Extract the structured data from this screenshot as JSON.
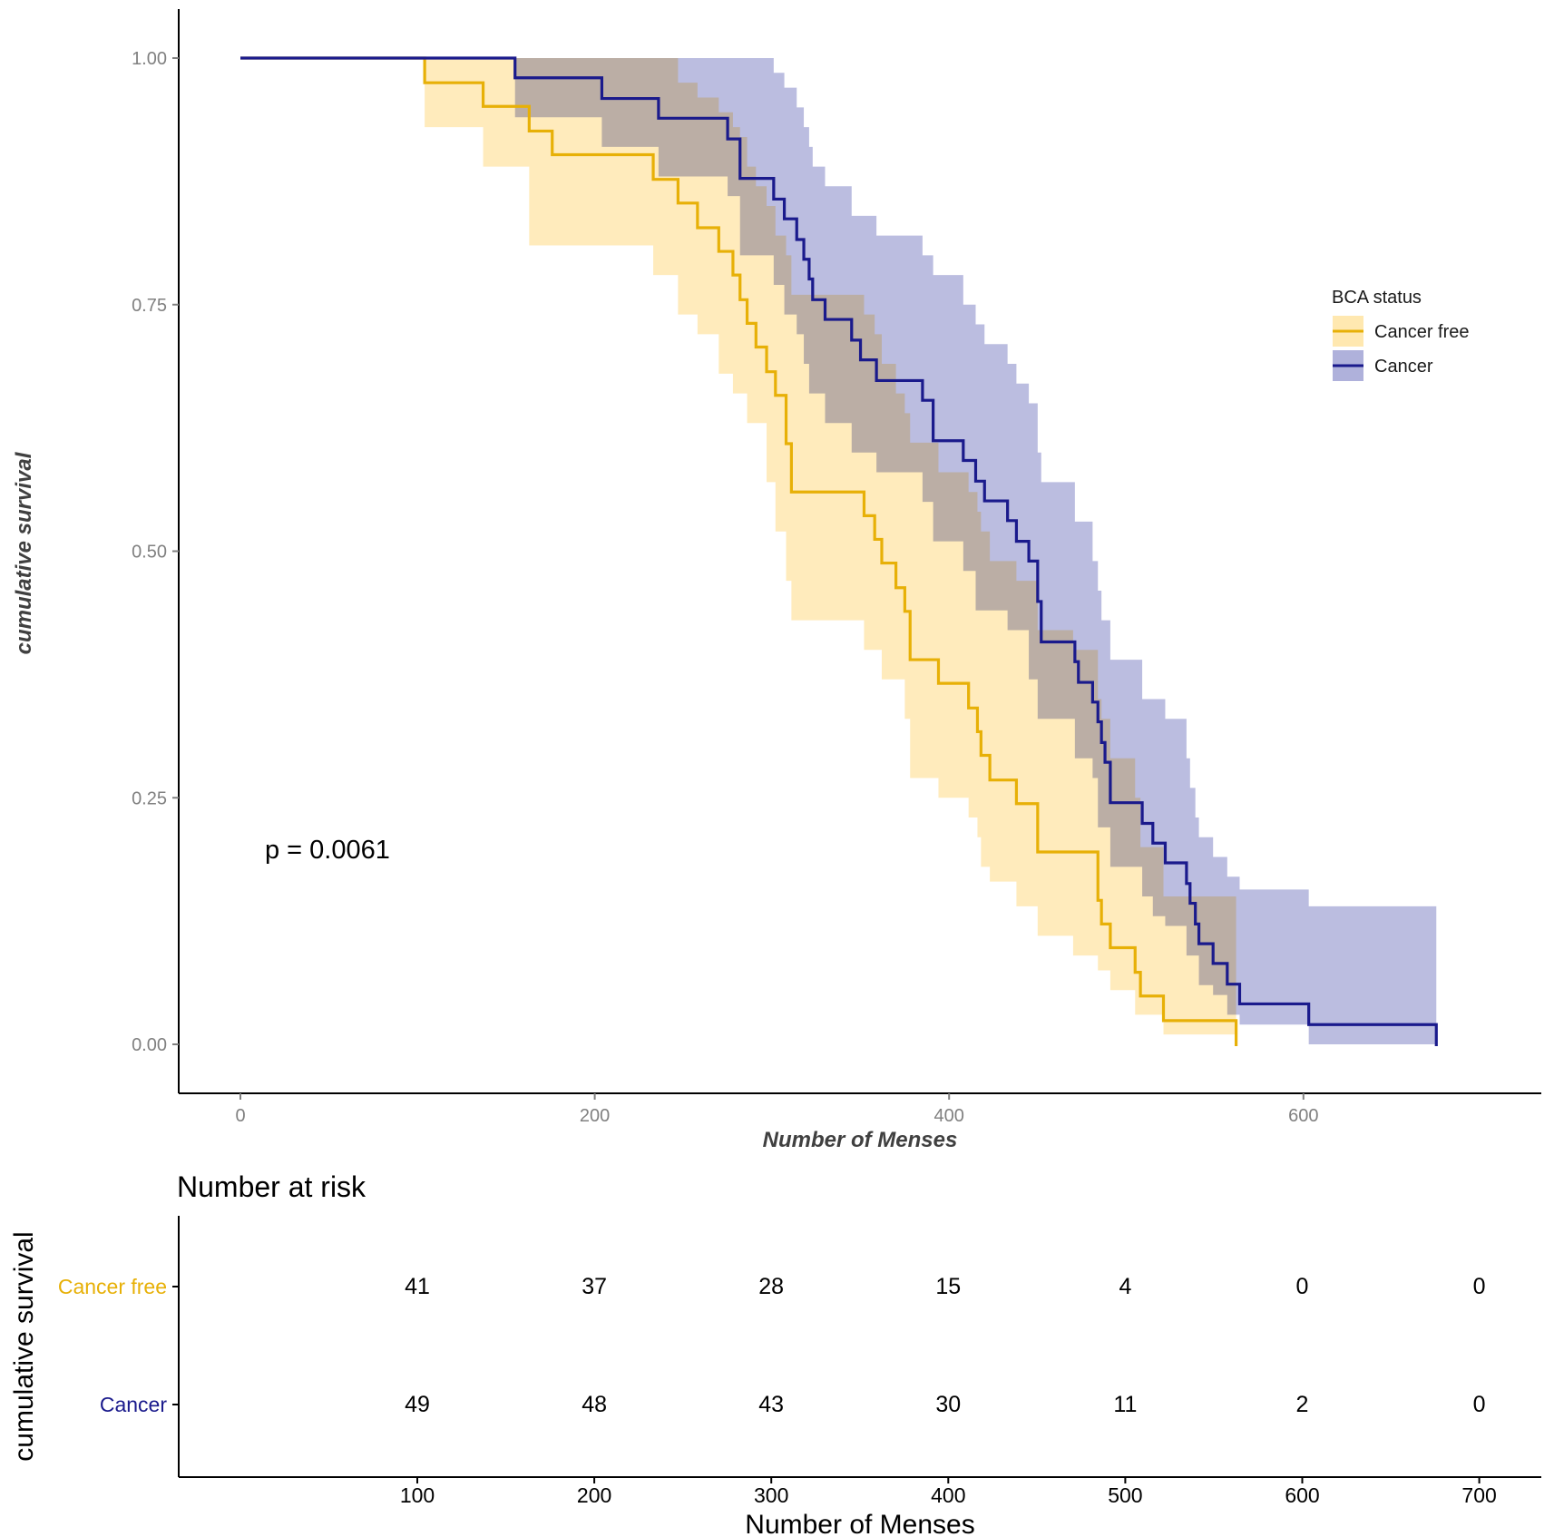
{
  "chart_data": {
    "type": "survival",
    "title": "",
    "xlabel": "Number of Menses",
    "ylabel": "cumulative survival",
    "xlim": [
      -35,
      735
    ],
    "ylim": [
      -0.045,
      1.05
    ],
    "x_ticks": [
      0,
      200,
      400,
      600
    ],
    "y_ticks": [
      0,
      0.25,
      0.5,
      0.75,
      1
    ],
    "y_tick_labels": [
      "0.00",
      "0.25",
      "0.50",
      "0.75",
      "1.00"
    ],
    "legend": {
      "title": "BCA status",
      "position": "right"
    },
    "annotation": "p = 0.0061",
    "series": [
      {
        "name": "Cancer free",
        "color": "#E7B007",
        "fill": "#FFE8B0",
        "steps": [
          [
            0,
            1
          ],
          [
            104,
            0.975
          ],
          [
            137,
            0.951
          ],
          [
            163,
            0.926
          ],
          [
            176,
            0.902
          ],
          [
            233,
            0.877
          ],
          [
            247,
            0.853
          ],
          [
            258,
            0.828
          ],
          [
            270,
            0.804
          ],
          [
            278,
            0.78
          ],
          [
            282,
            0.755
          ],
          [
            286,
            0.731
          ],
          [
            291,
            0.707
          ],
          [
            297,
            0.682
          ],
          [
            302,
            0.658
          ],
          [
            308,
            0.609
          ],
          [
            311,
            0.56
          ],
          [
            352,
            0.536
          ],
          [
            358,
            0.512
          ],
          [
            362,
            0.488
          ],
          [
            370,
            0.463
          ],
          [
            375,
            0.439
          ],
          [
            378,
            0.39
          ],
          [
            394,
            0.366
          ],
          [
            411,
            0.341
          ],
          [
            416,
            0.317
          ],
          [
            418,
            0.293
          ],
          [
            423,
            0.268
          ],
          [
            438,
            0.244
          ],
          [
            450,
            0.195
          ],
          [
            484,
            0.146
          ],
          [
            486,
            0.122
          ],
          [
            491,
            0.098
          ],
          [
            505,
            0.073
          ],
          [
            508,
            0.049
          ],
          [
            521,
            0.024
          ],
          [
            562,
            0.0
          ]
        ],
        "lower": [
          [
            0,
            1
          ],
          [
            104,
            0.93
          ],
          [
            137,
            0.89
          ],
          [
            163,
            0.81
          ],
          [
            176,
            0.81
          ],
          [
            233,
            0.78
          ],
          [
            247,
            0.74
          ],
          [
            258,
            0.72
          ],
          [
            270,
            0.68
          ],
          [
            278,
            0.66
          ],
          [
            286,
            0.63
          ],
          [
            297,
            0.57
          ],
          [
            302,
            0.52
          ],
          [
            308,
            0.47
          ],
          [
            311,
            0.43
          ],
          [
            352,
            0.4
          ],
          [
            362,
            0.37
          ],
          [
            375,
            0.33
          ],
          [
            378,
            0.27
          ],
          [
            394,
            0.25
          ],
          [
            411,
            0.23
          ],
          [
            416,
            0.21
          ],
          [
            418,
            0.18
          ],
          [
            423,
            0.165
          ],
          [
            438,
            0.14
          ],
          [
            450,
            0.11
          ],
          [
            470,
            0.09
          ],
          [
            484,
            0.075
          ],
          [
            491,
            0.055
          ],
          [
            505,
            0.03
          ],
          [
            521,
            0.01
          ],
          [
            562,
            0.0
          ]
        ],
        "upper": [
          [
            0,
            1
          ],
          [
            233,
            1
          ],
          [
            247,
            0.975
          ],
          [
            258,
            0.96
          ],
          [
            270,
            0.945
          ],
          [
            278,
            0.93
          ],
          [
            282,
            0.92
          ],
          [
            286,
            0.89
          ],
          [
            291,
            0.87
          ],
          [
            297,
            0.85
          ],
          [
            302,
            0.82
          ],
          [
            308,
            0.8
          ],
          [
            311,
            0.76
          ],
          [
            352,
            0.74
          ],
          [
            358,
            0.72
          ],
          [
            362,
            0.69
          ],
          [
            370,
            0.66
          ],
          [
            375,
            0.64
          ],
          [
            378,
            0.61
          ],
          [
            394,
            0.58
          ],
          [
            411,
            0.56
          ],
          [
            416,
            0.54
          ],
          [
            418,
            0.52
          ],
          [
            423,
            0.49
          ],
          [
            438,
            0.47
          ],
          [
            450,
            0.42
          ],
          [
            470,
            0.4
          ],
          [
            484,
            0.35
          ],
          [
            486,
            0.33
          ],
          [
            491,
            0.29
          ],
          [
            505,
            0.25
          ],
          [
            508,
            0.2
          ],
          [
            521,
            0.15
          ],
          [
            562,
            0.0
          ]
        ]
      },
      {
        "name": "Cancer",
        "color": "#1A1A8C",
        "fill": "#AFB1DB",
        "steps": [
          [
            0,
            1
          ],
          [
            155,
            0.98
          ],
          [
            204,
            0.959
          ],
          [
            236,
            0.939
          ],
          [
            275,
            0.918
          ],
          [
            282,
            0.878
          ],
          [
            301,
            0.857
          ],
          [
            307,
            0.837
          ],
          [
            314,
            0.816
          ],
          [
            318,
            0.796
          ],
          [
            321,
            0.776
          ],
          [
            323,
            0.755
          ],
          [
            330,
            0.735
          ],
          [
            345,
            0.714
          ],
          [
            350,
            0.694
          ],
          [
            359,
            0.673
          ],
          [
            385,
            0.653
          ],
          [
            391,
            0.612
          ],
          [
            408,
            0.592
          ],
          [
            415,
            0.571
          ],
          [
            420,
            0.551
          ],
          [
            433,
            0.531
          ],
          [
            438,
            0.51
          ],
          [
            445,
            0.49
          ],
          [
            450,
            0.449
          ],
          [
            452,
            0.408
          ],
          [
            471,
            0.388
          ],
          [
            473,
            0.367
          ],
          [
            481,
            0.347
          ],
          [
            484,
            0.327
          ],
          [
            486,
            0.306
          ],
          [
            488,
            0.286
          ],
          [
            491,
            0.245
          ],
          [
            509,
            0.224
          ],
          [
            515,
            0.204
          ],
          [
            522,
            0.184
          ],
          [
            534,
            0.163
          ],
          [
            536,
            0.143
          ],
          [
            539,
            0.122
          ],
          [
            541,
            0.102
          ],
          [
            549,
            0.082
          ],
          [
            557,
            0.061
          ],
          [
            564,
            0.041
          ],
          [
            603,
            0.02
          ],
          [
            675,
            0.0
          ]
        ],
        "lower": [
          [
            0,
            1
          ],
          [
            155,
            0.94
          ],
          [
            204,
            0.91
          ],
          [
            236,
            0.88
          ],
          [
            275,
            0.86
          ],
          [
            282,
            0.8
          ],
          [
            301,
            0.77
          ],
          [
            307,
            0.74
          ],
          [
            314,
            0.72
          ],
          [
            318,
            0.69
          ],
          [
            321,
            0.66
          ],
          [
            330,
            0.63
          ],
          [
            345,
            0.6
          ],
          [
            359,
            0.58
          ],
          [
            385,
            0.55
          ],
          [
            391,
            0.51
          ],
          [
            408,
            0.48
          ],
          [
            415,
            0.44
          ],
          [
            433,
            0.42
          ],
          [
            445,
            0.37
          ],
          [
            450,
            0.33
          ],
          [
            471,
            0.29
          ],
          [
            481,
            0.27
          ],
          [
            484,
            0.22
          ],
          [
            491,
            0.18
          ],
          [
            509,
            0.15
          ],
          [
            515,
            0.13
          ],
          [
            522,
            0.12
          ],
          [
            534,
            0.09
          ],
          [
            541,
            0.06
          ],
          [
            549,
            0.05
          ],
          [
            557,
            0.03
          ],
          [
            564,
            0.02
          ],
          [
            603,
            0.0
          ]
        ],
        "upper": [
          [
            0,
            1
          ],
          [
            282,
            1
          ],
          [
            301,
            0.985
          ],
          [
            307,
            0.97
          ],
          [
            314,
            0.95
          ],
          [
            318,
            0.93
          ],
          [
            321,
            0.91
          ],
          [
            323,
            0.89
          ],
          [
            330,
            0.87
          ],
          [
            345,
            0.84
          ],
          [
            359,
            0.82
          ],
          [
            385,
            0.8
          ],
          [
            391,
            0.78
          ],
          [
            408,
            0.75
          ],
          [
            415,
            0.73
          ],
          [
            420,
            0.71
          ],
          [
            433,
            0.69
          ],
          [
            438,
            0.67
          ],
          [
            445,
            0.65
          ],
          [
            450,
            0.6
          ],
          [
            452,
            0.57
          ],
          [
            471,
            0.53
          ],
          [
            481,
            0.49
          ],
          [
            484,
            0.46
          ],
          [
            486,
            0.43
          ],
          [
            491,
            0.39
          ],
          [
            509,
            0.35
          ],
          [
            522,
            0.33
          ],
          [
            534,
            0.29
          ],
          [
            536,
            0.26
          ],
          [
            539,
            0.23
          ],
          [
            541,
            0.21
          ],
          [
            549,
            0.19
          ],
          [
            557,
            0.17
          ],
          [
            564,
            0.157
          ],
          [
            603,
            0.14
          ],
          [
            675,
            0.14
          ]
        ]
      }
    ],
    "risk_table": {
      "title": "Number at risk",
      "xlabel": "Number of Menses",
      "ylabel": "cumulative survival",
      "times": [
        100,
        200,
        300,
        400,
        500,
        600,
        700
      ],
      "time_labels": [
        "100",
        "200",
        "300",
        "400",
        "500",
        "600",
        "700"
      ],
      "rows": [
        {
          "name": "Cancer free",
          "color": "#E7B007",
          "counts": [
            "41",
            "37",
            "28",
            "15",
            "4",
            "0",
            "0"
          ]
        },
        {
          "name": "Cancer",
          "color": "#1A1A8C",
          "counts": [
            "49",
            "48",
            "43",
            "30",
            "11",
            "2",
            "0"
          ]
        }
      ]
    }
  }
}
